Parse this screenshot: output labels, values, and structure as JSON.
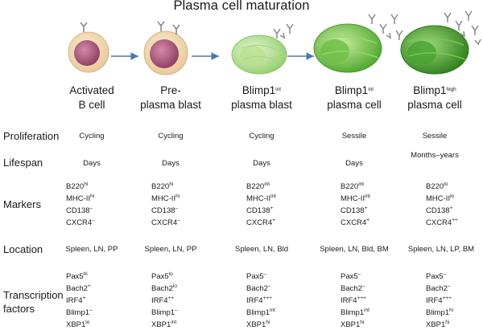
{
  "title": "Plasma cell maturation",
  "stages": [
    {
      "line1": "Activated",
      "line2": "B cell"
    },
    {
      "line1": "Pre-",
      "line2": "plasma blast"
    },
    {
      "line1": "Blimp1",
      "line1_sup": "int",
      "line2": "plasma blast"
    },
    {
      "line1": "Blimp1",
      "line1_sup": "int",
      "line2": "plasma cell"
    },
    {
      "line1": "Blimp1",
      "line1_sup": "high",
      "line2": "plasma cell"
    }
  ],
  "rows": {
    "proliferation": {
      "label": "Proliferation",
      "values": [
        "Cycling",
        "Cycling",
        "Cycling",
        "Sessile",
        "Sessile"
      ]
    },
    "lifespan": {
      "label": "Lifespan",
      "values": [
        "Days",
        "Days",
        "Days",
        "Days",
        "Months–years"
      ]
    },
    "markers": {
      "label": "Markers",
      "values": [
        [
          {
            "t": "B220",
            "s": "hi"
          },
          {
            "t": "MHC-II",
            "s": "hi"
          },
          {
            "t": "CD138",
            "s": "–"
          },
          {
            "t": "CXCR4",
            "s": "–"
          }
        ],
        [
          {
            "t": "B220",
            "s": "hi"
          },
          {
            "t": "MHC-II",
            "s": "hi"
          },
          {
            "t": "CD138",
            "s": "–"
          },
          {
            "t": "CXCR4",
            "s": "–"
          }
        ],
        [
          {
            "t": "B220",
            "s": "int"
          },
          {
            "t": "MHC-II",
            "s": "int"
          },
          {
            "t": "CD138",
            "s": "+"
          },
          {
            "t": "CXCR4",
            "s": "+"
          }
        ],
        [
          {
            "t": "B220",
            "s": "int"
          },
          {
            "t": "MHC-II",
            "s": "int"
          },
          {
            "t": "CD138",
            "s": "+"
          },
          {
            "t": "CXCR4",
            "s": "+"
          }
        ],
        [
          {
            "t": "B220",
            "s": "lo"
          },
          {
            "t": "MHC-II",
            "s": "lo"
          },
          {
            "t": "CD138",
            "s": "+"
          },
          {
            "t": "CXCR4",
            "s": "++"
          }
        ]
      ]
    },
    "location": {
      "label": "Location",
      "values": [
        "Spleen, LN, PP",
        "Spleen, LN, PP",
        "Spleen, LN, Bld",
        "Spleen, LN, Bld, BM",
        "Spleen, LN, LP, BM"
      ]
    },
    "transcription": {
      "label_line1": "Transcription",
      "label_line2": "factors",
      "values": [
        [
          {
            "t": "Pax5",
            "s": "hi"
          },
          {
            "t": "Bach2",
            "s": "+"
          },
          {
            "t": "IRF4",
            "s": "+"
          },
          {
            "t": "Blimp1",
            "s": "–"
          },
          {
            "t": "XBP1",
            "s": "lo"
          }
        ],
        [
          {
            "t": "Pax5",
            "s": "lo"
          },
          {
            "t": "Bach2",
            "s": "lo"
          },
          {
            "t": "IRF4",
            "s": "++"
          },
          {
            "t": "Blimp1",
            "s": "–"
          },
          {
            "t": "XBP1",
            "s": "int"
          }
        ],
        [
          {
            "t": "Pax5",
            "s": "–"
          },
          {
            "t": "Bach2",
            "s": "–"
          },
          {
            "t": "IRF4",
            "s": "+++"
          },
          {
            "t": "Blimp1",
            "s": "int"
          },
          {
            "t": "XBP1",
            "s": "hi"
          }
        ],
        [
          {
            "t": "Pax5",
            "s": "–"
          },
          {
            "t": "Bach2",
            "s": "–"
          },
          {
            "t": "IRF4",
            "s": "+++"
          },
          {
            "t": "Blimp1",
            "s": "int"
          },
          {
            "t": "XBP1",
            "s": "hi"
          }
        ],
        [
          {
            "t": "Pax5",
            "s": "–"
          },
          {
            "t": "Bach2",
            "s": "–"
          },
          {
            "t": "IRF4",
            "s": "+++"
          },
          {
            "t": "Blimp1",
            "s": "hi"
          },
          {
            "t": "XBP1",
            "s": "hi"
          }
        ]
      ]
    }
  },
  "colors": {
    "b_cell_body": "#f3dcb8",
    "b_cell_nucleus": "#a8547a",
    "plasma_light": "#bfe3a0",
    "plasma_mid": "#86c960",
    "plasma_dark": "#3f9a2c",
    "arrow": "#4d79b0",
    "antibody": "#8a8a8a"
  }
}
